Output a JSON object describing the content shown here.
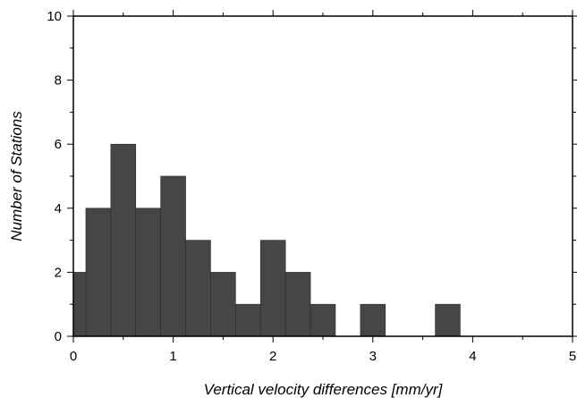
{
  "chart_data": {
    "type": "bar",
    "xlabel": "Vertical velocity differences [mm/yr]",
    "ylabel": "Number of Stations",
    "xlim": [
      0,
      5
    ],
    "ylim": [
      0,
      10
    ],
    "bin_width": 0.25,
    "bins_start": [
      0.0,
      0.125,
      0.375,
      0.625,
      0.875,
      1.125,
      1.375,
      1.625,
      1.875,
      2.125,
      2.375,
      2.625,
      2.875,
      3.125,
      3.375,
      3.625
    ],
    "values": [
      2,
      4,
      6,
      4,
      5,
      3,
      2,
      1,
      3,
      2,
      1,
      0,
      1,
      0,
      0,
      1
    ],
    "x_ticks": [
      "0",
      "1",
      "2",
      "3",
      "4",
      "5"
    ],
    "y_ticks": [
      "0",
      "2",
      "4",
      "6",
      "8",
      "10"
    ],
    "grid": false,
    "bar_color": "#464646"
  }
}
